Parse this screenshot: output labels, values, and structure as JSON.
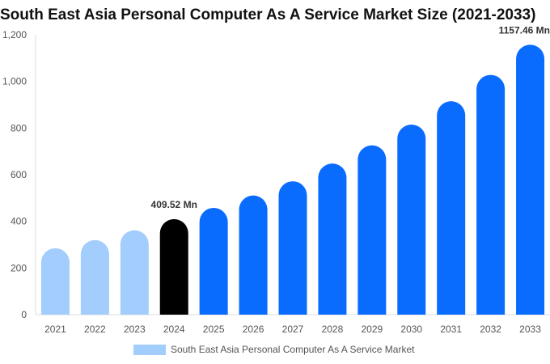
{
  "chart_data": {
    "type": "bar",
    "title": "South East Asia Personal Computer As A Service Market Size (2021-2033)",
    "xlabel": "",
    "ylabel": "",
    "ylim": [
      0,
      1200
    ],
    "y_ticks": [
      "0",
      "200",
      "400",
      "600",
      "800",
      "1,000",
      "1,200"
    ],
    "categories": [
      "2021",
      "2022",
      "2023",
      "2024",
      "2025",
      "2026",
      "2027",
      "2028",
      "2029",
      "2030",
      "2031",
      "2032",
      "2033"
    ],
    "series": [
      {
        "name": "South East Asia Personal Computer As A Service Market",
        "values": [
          285,
          320,
          362,
          409.52,
          458,
          511,
          572,
          648,
          726,
          815,
          915,
          1028,
          1157.46
        ]
      }
    ],
    "data_labels": [
      {
        "category": "2024",
        "text": "409.52 Mn"
      },
      {
        "category": "2033",
        "text": "1157.46 Mn"
      }
    ],
    "colors": {
      "historical": "#a3cdfc",
      "base_year": "#000000",
      "forecast": "#0a6cff",
      "legend_swatch": "#a3cdfc"
    },
    "grid": false,
    "legend_position": "bottom"
  }
}
